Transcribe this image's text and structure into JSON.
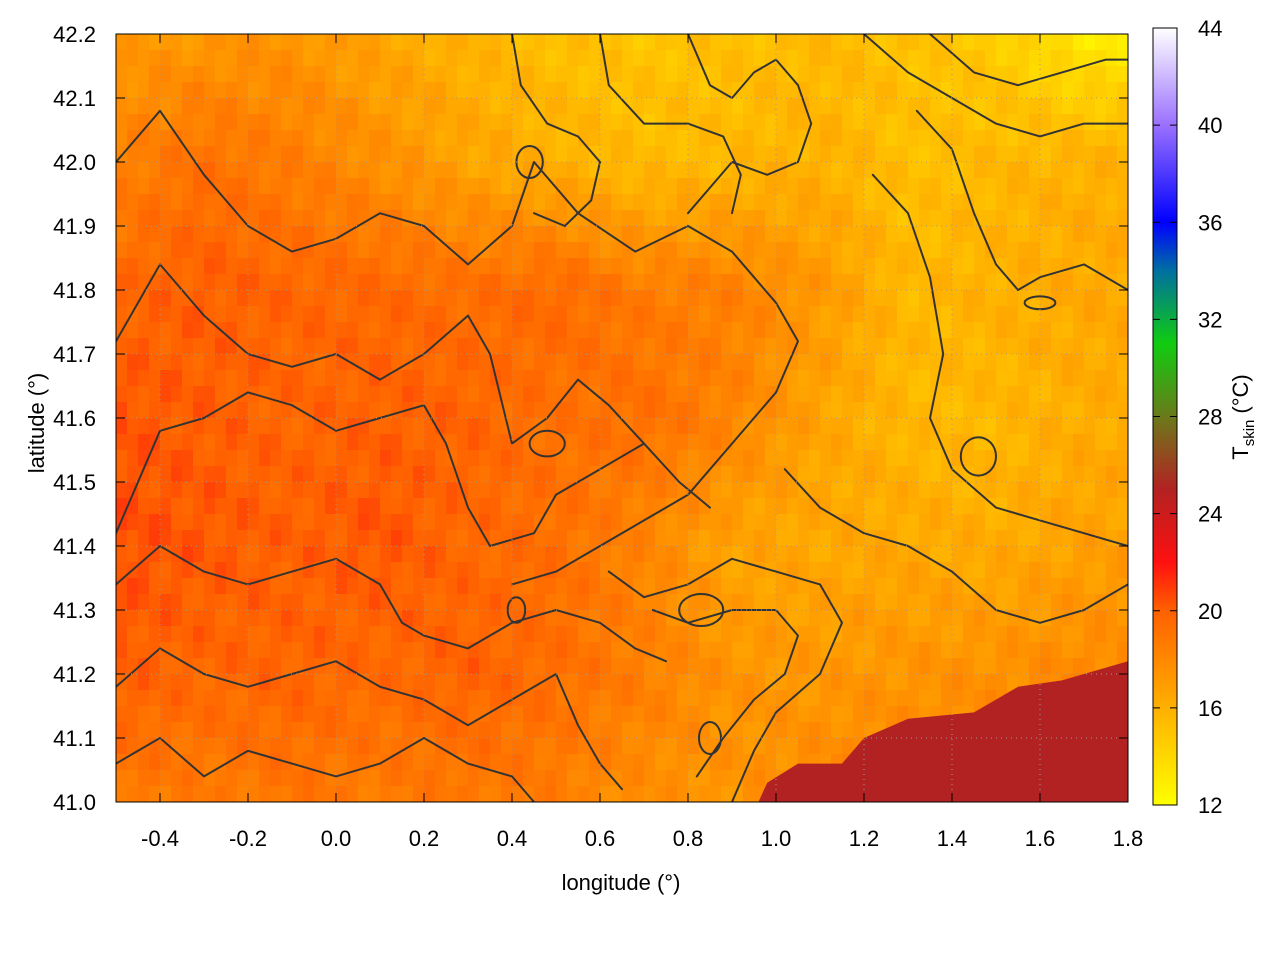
{
  "chart_data": {
    "type": "heatmap",
    "title": "",
    "xlabel": "longitude (°)",
    "ylabel": "latitude (°)",
    "xlim": [
      -0.5,
      1.8
    ],
    "ylim": [
      41.0,
      42.2
    ],
    "xticks": [
      -0.4,
      -0.2,
      0.0,
      0.2,
      0.4,
      0.6,
      0.8,
      1.0,
      1.2,
      1.4,
      1.6,
      1.8
    ],
    "xtick_labels": [
      "-0.4",
      "-0.2",
      "0.0",
      "0.2",
      "0.4",
      "0.6",
      "0.8",
      "1.0",
      "1.2",
      "1.4",
      "1.6",
      "1.8"
    ],
    "yticks": [
      41.0,
      41.1,
      41.2,
      41.3,
      41.4,
      41.5,
      41.6,
      41.7,
      41.8,
      41.9,
      42.0,
      42.1,
      42.2
    ],
    "ytick_labels": [
      "41.0",
      "41.1",
      "41.2",
      "41.3",
      "41.4",
      "41.5",
      "41.6",
      "41.7",
      "41.8",
      "41.9",
      "42.0",
      "42.1",
      "42.2"
    ],
    "grid": true,
    "colorbar": {
      "label_main": "T",
      "label_sub": "skin",
      "label_unit": "(°C)",
      "range": [
        12,
        44
      ],
      "ticks": [
        12,
        16,
        20,
        24,
        28,
        32,
        36,
        40,
        44
      ],
      "tick_labels": [
        "12",
        "16",
        "20",
        "24",
        "28",
        "32",
        "36",
        "40",
        "44"
      ],
      "colors": [
        {
          "value": 12,
          "color": "#ffff00"
        },
        {
          "value": 16,
          "color": "#ffb000"
        },
        {
          "value": 20,
          "color": "#ff6000"
        },
        {
          "value": 22,
          "color": "#ff1010"
        },
        {
          "value": 25,
          "color": "#b22222"
        },
        {
          "value": 28,
          "color": "#6a7a1a"
        },
        {
          "value": 31,
          "color": "#10cc10"
        },
        {
          "value": 34,
          "color": "#0070a0"
        },
        {
          "value": 36,
          "color": "#0000ff"
        },
        {
          "value": 40,
          "color": "#9a70ff"
        },
        {
          "value": 44,
          "color": "#ffffff"
        }
      ]
    },
    "field": {
      "x_nodes": [
        -0.5,
        -0.3,
        -0.1,
        0.1,
        0.3,
        0.5,
        0.7,
        0.9,
        1.1,
        1.3,
        1.5,
        1.7
      ],
      "y_nodes": [
        42.2,
        42.0,
        41.8,
        41.6,
        41.4,
        41.2,
        41.0
      ],
      "values": [
        [
          17.0,
          17.2,
          17.4,
          16.5,
          15.8,
          15.2,
          15.0,
          15.2,
          15.5,
          15.2,
          14.6,
          13.0
        ],
        [
          18.3,
          19.2,
          18.5,
          17.6,
          16.6,
          16.0,
          15.4,
          15.6,
          16.0,
          15.2,
          15.6,
          16.0
        ],
        [
          19.6,
          20.0,
          19.7,
          19.6,
          19.3,
          19.6,
          18.6,
          18.4,
          17.2,
          15.6,
          16.0,
          16.4
        ],
        [
          20.3,
          20.0,
          19.7,
          19.9,
          19.8,
          19.1,
          19.3,
          18.2,
          16.6,
          15.6,
          15.6,
          16.2
        ],
        [
          20.5,
          20.2,
          19.9,
          20.3,
          19.6,
          19.3,
          18.1,
          16.6,
          16.4,
          16.4,
          16.2,
          16.8
        ],
        [
          20.0,
          19.6,
          19.8,
          19.5,
          19.9,
          19.3,
          18.5,
          17.4,
          17.2,
          17.4,
          17.6,
          18.0
        ],
        [
          18.8,
          18.6,
          18.9,
          18.6,
          18.8,
          18.5,
          17.6,
          17.4,
          18.0,
          18.2,
          18.4,
          18.6
        ]
      ]
    },
    "sea_region": {
      "value": 25,
      "boundary": [
        [
          0.96,
          41.0
        ],
        [
          0.98,
          41.03
        ],
        [
          1.05,
          41.06
        ],
        [
          1.15,
          41.06
        ],
        [
          1.2,
          41.1
        ],
        [
          1.3,
          41.13
        ],
        [
          1.45,
          41.14
        ],
        [
          1.55,
          41.18
        ],
        [
          1.65,
          41.19
        ],
        [
          1.75,
          41.21
        ],
        [
          1.8,
          41.22
        ],
        [
          1.8,
          41.0
        ]
      ]
    },
    "contour_lines": [
      [
        [
          -0.5,
          42.0
        ],
        [
          -0.4,
          42.08
        ],
        [
          -0.3,
          41.98
        ],
        [
          -0.2,
          41.9
        ],
        [
          -0.1,
          41.86
        ],
        [
          0.0,
          41.88
        ],
        [
          0.1,
          41.92
        ],
        [
          0.2,
          41.9
        ],
        [
          0.3,
          41.84
        ],
        [
          0.4,
          41.9
        ],
        [
          0.45,
          42.0
        ],
        [
          0.55,
          41.92
        ],
        [
          0.68,
          41.86
        ],
        [
          0.8,
          41.9
        ],
        [
          0.9,
          41.86
        ],
        [
          1.0,
          41.78
        ],
        [
          1.05,
          41.72
        ],
        [
          1.0,
          41.64
        ],
        [
          0.9,
          41.56
        ],
        [
          0.8,
          41.48
        ],
        [
          0.7,
          41.44
        ],
        [
          0.6,
          41.4
        ],
        [
          0.5,
          41.36
        ],
        [
          0.4,
          41.34
        ]
      ],
      [
        [
          -0.5,
          41.72
        ],
        [
          -0.4,
          41.84
        ],
        [
          -0.3,
          41.76
        ],
        [
          -0.2,
          41.7
        ],
        [
          -0.1,
          41.68
        ],
        [
          0.0,
          41.7
        ],
        [
          0.1,
          41.66
        ],
        [
          0.2,
          41.7
        ],
        [
          0.3,
          41.76
        ],
        [
          0.35,
          41.7
        ],
        [
          0.4,
          41.56
        ],
        [
          0.48,
          41.6
        ],
        [
          0.55,
          41.66
        ],
        [
          0.62,
          41.62
        ],
        [
          0.7,
          41.56
        ],
        [
          0.78,
          41.5
        ],
        [
          0.85,
          41.46
        ]
      ],
      [
        [
          -0.5,
          41.42
        ],
        [
          -0.4,
          41.58
        ],
        [
          -0.3,
          41.6
        ],
        [
          -0.2,
          41.64
        ],
        [
          -0.1,
          41.62
        ],
        [
          0.0,
          41.58
        ],
        [
          0.1,
          41.6
        ],
        [
          0.2,
          41.62
        ],
        [
          0.25,
          41.56
        ],
        [
          0.3,
          41.46
        ],
        [
          0.35,
          41.4
        ],
        [
          0.45,
          41.42
        ],
        [
          0.5,
          41.48
        ],
        [
          0.6,
          41.52
        ],
        [
          0.7,
          41.56
        ]
      ],
      [
        [
          -0.5,
          41.34
        ],
        [
          -0.4,
          41.4
        ],
        [
          -0.3,
          41.36
        ],
        [
          -0.2,
          41.34
        ],
        [
          -0.1,
          41.36
        ],
        [
          0.0,
          41.38
        ],
        [
          0.1,
          41.34
        ],
        [
          0.15,
          41.28
        ],
        [
          0.2,
          41.26
        ],
        [
          0.3,
          41.24
        ],
        [
          0.4,
          41.28
        ],
        [
          0.5,
          41.3
        ],
        [
          0.6,
          41.28
        ],
        [
          0.68,
          41.24
        ],
        [
          0.75,
          41.22
        ]
      ],
      [
        [
          -0.5,
          41.18
        ],
        [
          -0.4,
          41.24
        ],
        [
          -0.3,
          41.2
        ],
        [
          -0.2,
          41.18
        ],
        [
          -0.1,
          41.2
        ],
        [
          0.0,
          41.22
        ],
        [
          0.1,
          41.18
        ],
        [
          0.2,
          41.16
        ],
        [
          0.3,
          41.12
        ],
        [
          0.4,
          41.16
        ],
        [
          0.5,
          41.2
        ],
        [
          0.55,
          41.12
        ],
        [
          0.6,
          41.06
        ],
        [
          0.65,
          41.02
        ]
      ],
      [
        [
          -0.5,
          41.06
        ],
        [
          -0.4,
          41.1
        ],
        [
          -0.3,
          41.04
        ],
        [
          -0.2,
          41.08
        ],
        [
          -0.1,
          41.06
        ],
        [
          0.0,
          41.04
        ],
        [
          0.1,
          41.06
        ],
        [
          0.2,
          41.1
        ],
        [
          0.3,
          41.06
        ],
        [
          0.4,
          41.04
        ],
        [
          0.45,
          41.0
        ]
      ],
      [
        [
          0.62,
          41.36
        ],
        [
          0.7,
          41.32
        ],
        [
          0.8,
          41.34
        ],
        [
          0.9,
          41.38
        ],
        [
          1.0,
          41.36
        ],
        [
          1.1,
          41.34
        ],
        [
          1.15,
          41.28
        ],
        [
          1.1,
          41.2
        ],
        [
          1.0,
          41.14
        ],
        [
          0.95,
          41.08
        ],
        [
          0.9,
          41.0
        ]
      ],
      [
        [
          0.72,
          41.3
        ],
        [
          0.8,
          41.28
        ],
        [
          0.9,
          41.3
        ],
        [
          1.0,
          41.3
        ],
        [
          1.05,
          41.26
        ],
        [
          1.02,
          41.2
        ],
        [
          0.95,
          41.16
        ],
        [
          0.88,
          41.1
        ],
        [
          0.82,
          41.04
        ]
      ],
      [
        [
          1.02,
          41.52
        ],
        [
          1.1,
          41.46
        ],
        [
          1.2,
          41.42
        ],
        [
          1.3,
          41.4
        ],
        [
          1.4,
          41.36
        ],
        [
          1.5,
          41.3
        ],
        [
          1.6,
          41.28
        ],
        [
          1.7,
          41.3
        ],
        [
          1.8,
          41.34
        ]
      ],
      [
        [
          1.22,
          41.98
        ],
        [
          1.3,
          41.92
        ],
        [
          1.35,
          41.82
        ],
        [
          1.38,
          41.7
        ],
        [
          1.35,
          41.6
        ],
        [
          1.4,
          41.52
        ],
        [
          1.5,
          41.46
        ],
        [
          1.6,
          41.44
        ],
        [
          1.7,
          41.42
        ],
        [
          1.8,
          41.4
        ]
      ],
      [
        [
          1.32,
          42.08
        ],
        [
          1.4,
          42.02
        ],
        [
          1.45,
          41.92
        ],
        [
          1.5,
          41.84
        ],
        [
          1.55,
          41.8
        ],
        [
          1.6,
          41.82
        ],
        [
          1.7,
          41.84
        ],
        [
          1.8,
          41.8
        ]
      ],
      [
        [
          1.35,
          42.2
        ],
        [
          1.45,
          42.14
        ],
        [
          1.55,
          42.12
        ],
        [
          1.65,
          42.14
        ],
        [
          1.75,
          42.16
        ],
        [
          1.8,
          42.16
        ]
      ],
      [
        [
          1.2,
          42.2
        ],
        [
          1.3,
          42.14
        ],
        [
          1.4,
          42.1
        ],
        [
          1.5,
          42.06
        ],
        [
          1.6,
          42.04
        ],
        [
          1.7,
          42.06
        ],
        [
          1.8,
          42.06
        ]
      ],
      [
        [
          0.8,
          42.2
        ],
        [
          0.85,
          42.12
        ],
        [
          0.9,
          42.1
        ],
        [
          0.95,
          42.14
        ],
        [
          1.0,
          42.16
        ],
        [
          1.05,
          42.12
        ],
        [
          1.08,
          42.06
        ],
        [
          1.05,
          42.0
        ],
        [
          0.98,
          41.98
        ],
        [
          0.9,
          42.0
        ],
        [
          0.85,
          41.96
        ],
        [
          0.8,
          41.92
        ]
      ],
      [
        [
          0.6,
          42.2
        ],
        [
          0.62,
          42.12
        ],
        [
          0.7,
          42.06
        ],
        [
          0.8,
          42.06
        ],
        [
          0.88,
          42.04
        ],
        [
          0.92,
          41.98
        ],
        [
          0.9,
          41.92
        ]
      ],
      [
        [
          0.4,
          42.2
        ],
        [
          0.42,
          42.12
        ],
        [
          0.48,
          42.06
        ],
        [
          0.55,
          42.04
        ],
        [
          0.6,
          42.0
        ],
        [
          0.58,
          41.94
        ],
        [
          0.52,
          41.9
        ],
        [
          0.45,
          41.92
        ]
      ]
    ],
    "small_contours": [
      {
        "cx": 0.48,
        "cy": 41.56,
        "rx": 0.04,
        "ry": 0.02
      },
      {
        "cx": 1.46,
        "cy": 41.54,
        "rx": 0.04,
        "ry": 0.03
      },
      {
        "cx": 0.41,
        "cy": 41.3,
        "rx": 0.02,
        "ry": 0.02
      },
      {
        "cx": 0.83,
        "cy": 41.3,
        "rx": 0.05,
        "ry": 0.025
      },
      {
        "cx": 0.85,
        "cy": 41.1,
        "rx": 0.025,
        "ry": 0.025
      },
      {
        "cx": 1.6,
        "cy": 41.78,
        "rx": 0.035,
        "ry": 0.01
      },
      {
        "cx": 0.44,
        "cy": 42.0,
        "rx": 0.03,
        "ry": 0.025
      }
    ]
  }
}
